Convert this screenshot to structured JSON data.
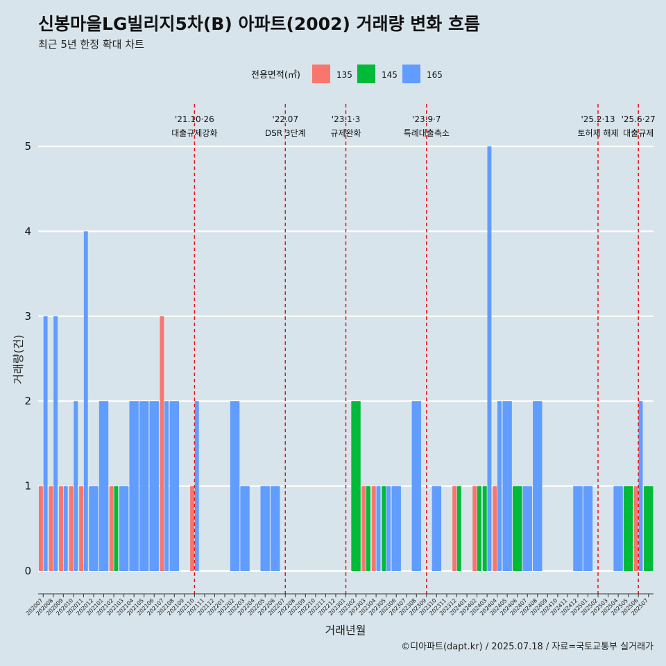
{
  "title": "신봉마을LG빌리지5차(B) 아파트(2002) 거래량 변화 흐름",
  "subtitle": "최근 5년 한정 확대 차트",
  "caption": "©디아파트(dapt.kr) / 2025.07.18 / 자료=국토교통부 실거래가",
  "chart_data": {
    "type": "bar",
    "xlabel": "거래년월",
    "ylabel": "거래량(건)",
    "ylim": [
      0,
      5
    ],
    "yticks": [
      0,
      1,
      2,
      3,
      4,
      5
    ],
    "legend": {
      "title": "전용면적(㎡)",
      "position": "top",
      "items": [
        {
          "name": "135",
          "color": "#f8766d"
        },
        {
          "name": "145",
          "color": "#00ba38"
        },
        {
          "name": "165",
          "color": "#619cff"
        }
      ]
    },
    "categories": [
      "202007",
      "202008",
      "202009",
      "202010",
      "202011",
      "202012",
      "202101",
      "202102",
      "202103",
      "202104",
      "202105",
      "202106",
      "202107",
      "202108",
      "202109",
      "202110",
      "202111",
      "202112",
      "202201",
      "202202",
      "202203",
      "202204",
      "202205",
      "202206",
      "202207",
      "202208",
      "202209",
      "202210",
      "202211",
      "202212",
      "202301",
      "202302",
      "202303",
      "202304",
      "202305",
      "202306",
      "202307",
      "202308",
      "202309",
      "202310",
      "202311",
      "202312",
      "202401",
      "202402",
      "202403",
      "202404",
      "202405",
      "202406",
      "202407",
      "202408",
      "202409",
      "202410",
      "202411",
      "202412",
      "202501",
      "202502",
      "202503",
      "202504",
      "202505",
      "202506",
      "202507"
    ],
    "series": [
      {
        "name": "135",
        "color": "#f8766d",
        "values": [
          1,
          1,
          1,
          1,
          1,
          0,
          0,
          1,
          0,
          0,
          0,
          0,
          3,
          0,
          0,
          1,
          0,
          0,
          0,
          0,
          0,
          0,
          0,
          0,
          0,
          0,
          0,
          0,
          0,
          0,
          0,
          0,
          1,
          1,
          0,
          0,
          0,
          0,
          0,
          0,
          0,
          1,
          0,
          1,
          0,
          1,
          0,
          0,
          0,
          0,
          0,
          0,
          0,
          0,
          0,
          0,
          0,
          0,
          0,
          1,
          0
        ]
      },
      {
        "name": "145",
        "color": "#00ba38",
        "values": [
          0,
          0,
          0,
          0,
          0,
          0,
          0,
          1,
          0,
          0,
          0,
          0,
          0,
          0,
          0,
          0,
          0,
          0,
          0,
          0,
          0,
          0,
          0,
          0,
          0,
          0,
          0,
          0,
          0,
          0,
          0,
          2,
          1,
          0,
          1,
          0,
          0,
          0,
          0,
          0,
          0,
          1,
          0,
          1,
          1,
          0,
          0,
          1,
          0,
          0,
          0,
          0,
          0,
          0,
          0,
          0,
          0,
          0,
          1,
          0,
          1
        ]
      },
      {
        "name": "165",
        "color": "#619cff",
        "values": [
          3,
          3,
          1,
          2,
          4,
          1,
          2,
          0,
          1,
          2,
          2,
          2,
          2,
          2,
          0,
          2,
          0,
          0,
          0,
          2,
          1,
          0,
          1,
          1,
          0,
          0,
          0,
          0,
          0,
          0,
          0,
          0,
          0,
          1,
          1,
          1,
          0,
          2,
          0,
          1,
          0,
          0,
          0,
          0,
          5,
          2,
          2,
          0,
          1,
          2,
          0,
          0,
          0,
          1,
          1,
          0,
          0,
          1,
          0,
          2,
          0
        ]
      }
    ],
    "annotations": [
      {
        "at": "202110",
        "date": "'21.10·26",
        "label": "대출규제강화"
      },
      {
        "at": "202207",
        "date": "'22.07",
        "label": "DSR 3단계"
      },
      {
        "at": "202301",
        "date": "'23.1·3",
        "label": "규제완화"
      },
      {
        "at": "202309",
        "date": "'23.9·7",
        "label": "특례대출축소"
      },
      {
        "at": "202502",
        "date": "'25.2·13",
        "label": "토허제 해제"
      },
      {
        "at": "202506",
        "date": "'25.6·27",
        "label": "대출규제"
      }
    ]
  }
}
